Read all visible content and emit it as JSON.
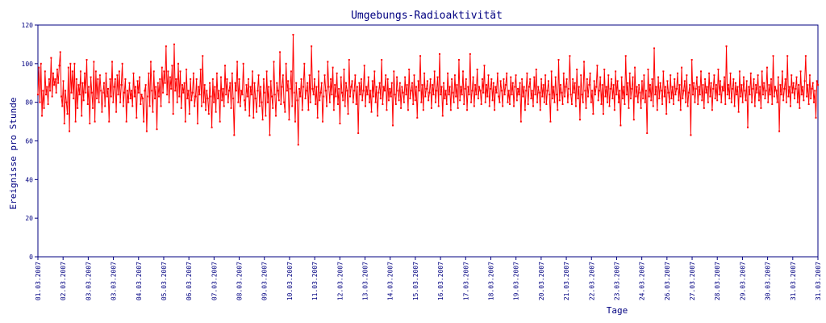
{
  "chart_data": {
    "type": "line",
    "title": "Umgebungs-Radioaktivität",
    "xlabel": "Tage",
    "ylabel": "Ereignisse pro Stunde",
    "ylim": [
      0,
      120
    ],
    "yticks": [
      "0",
      "20",
      "40",
      "60",
      "80",
      "100",
      "120"
    ],
    "xticks": [
      "01.03.2007",
      "02.03.2007",
      "03.03.2007",
      "03.03.2007",
      "04.03.2007",
      "05.03.2007",
      "06.03.2007",
      "07.03.2007",
      "08.03.2007",
      "09.03.2007",
      "10.03.2007",
      "11.03.2007",
      "12.03.2007",
      "13.03.2007",
      "14.03.2007",
      "15.03.2007",
      "16.03.2007",
      "17.03.2007",
      "18.03.2007",
      "19.03.2007",
      "20.03.2007",
      "21.03.2007",
      "22.03.2007",
      "23.03.2007",
      "24.03.2007",
      "26.03.2007",
      "27.03.2007",
      "28.03.2007",
      "29.03.2007",
      "30.03.2007",
      "31.03.2007",
      "31.03.2007"
    ],
    "x_unit": "hours since first tick label",
    "points_per_day": 24,
    "grid": false,
    "legend": "none",
    "line_color": "#ff0000",
    "axis_color": "#000080",
    "series": [
      {
        "values": [
          84,
          98,
          80,
          100,
          73,
          86,
          77,
          96,
          84,
          88,
          79,
          92,
          86,
          103,
          83,
          95,
          89,
          92,
          85,
          97,
          90,
          99,
          106,
          83,
          78,
          91,
          69,
          86,
          80,
          74,
          98,
          65,
          100,
          85,
          96,
          82,
          100,
          70,
          92,
          77,
          89,
          84,
          96,
          73,
          90,
          81,
          95,
          85,
          102,
          79,
          88,
          69,
          93,
          85,
          77,
          101,
          70,
          96,
          82,
          92,
          80,
          94,
          86,
          75,
          85,
          90,
          78,
          95,
          83,
          87,
          70,
          92,
          83,
          101,
          80,
          88,
          92,
          75,
          94,
          84,
          96,
          80,
          89,
          100,
          78,
          85,
          92,
          70,
          86,
          80,
          90,
          82,
          86,
          78,
          95,
          83,
          88,
          72,
          91,
          85,
          93,
          79,
          84,
          82,
          70,
          86,
          89,
          65,
          83,
          95,
          78,
          101,
          86,
          75,
          96,
          82,
          88,
          66,
          90,
          83,
          92,
          78,
          98,
          85,
          96,
          90,
          109,
          84,
          96,
          80,
          93,
          87,
          99,
          74,
          110,
          86,
          92,
          80,
          100,
          83,
          96,
          77,
          89,
          85,
          90,
          70,
          97,
          82,
          86,
          74,
          92,
          81,
          85,
          95,
          78,
          83,
          92,
          69,
          88,
          84,
          97,
          78,
          104,
          80,
          89,
          76,
          86,
          82,
          74,
          90,
          83,
          67,
          92,
          80,
          88,
          75,
          95,
          82,
          86,
          70,
          93,
          81,
          87,
          78,
          99,
          84,
          92,
          80,
          86,
          90,
          77,
          95,
          82,
          63,
          90,
          86,
          101,
          80,
          92,
          78,
          86,
          84,
          100,
          81,
          76,
          89,
          83,
          92,
          73,
          88,
          84,
          96,
          72,
          90,
          82,
          75,
          86,
          94,
          78,
          88,
          80,
          71,
          92,
          85,
          73,
          96,
          80,
          88,
          63,
          91,
          83,
          77,
          101,
          84,
          73,
          90,
          86,
          81,
          106,
          79,
          88,
          94,
          80,
          75,
          100,
          86,
          91,
          71,
          87,
          96,
          78,
          115,
          85,
          70,
          90,
          81,
          58,
          87,
          83,
          92,
          76,
          88,
          100,
          82,
          86,
          90,
          76,
          94,
          80,
          109,
          87,
          84,
          92,
          79,
          88,
          72,
          96,
          81,
          85,
          90,
          70,
          83,
          94,
          86,
          78,
          101,
          88,
          80,
          92,
          84,
          98,
          76,
          89,
          83,
          95,
          79,
          87,
          69,
          93,
          85,
          81,
          97,
          78,
          90,
          86,
          74,
          102,
          83,
          88,
          91,
          80,
          86,
          94,
          79,
          88,
          64,
          90,
          84,
          92,
          81,
          86,
          99,
          78,
          88,
          84,
          93,
          80,
          86,
          75,
          91,
          83,
          96,
          80,
          88,
          73,
          85,
          90,
          82,
          102,
          79,
          88,
          86,
          94,
          76,
          92,
          81,
          87,
          83,
          90,
          68,
          96,
          84,
          79,
          93,
          86,
          81,
          90,
          77,
          88,
          85,
          80,
          93,
          84,
          89,
          76,
          97,
          82,
          86,
          90,
          79,
          94,
          81,
          88,
          72,
          91,
          86,
          104,
          80,
          89,
          76,
          95,
          83,
          87,
          91,
          81,
          85,
          92,
          77,
          89,
          84,
          96,
          80,
          86,
          93,
          78,
          105,
          84,
          88,
          73,
          90,
          82,
          86,
          79,
          95,
          84,
          88,
          76,
          92,
          85,
          80,
          94,
          83,
          89,
          77,
          102,
          81,
          88,
          84,
          96,
          79,
          87,
          92,
          76,
          88,
          84,
          105,
          80,
          86,
          93,
          78,
          89,
          84,
          97,
          82,
          88,
          86,
          79,
          92,
          85,
          99,
          80,
          89,
          83,
          94,
          78,
          87,
          92,
          81,
          90,
          76,
          88,
          85,
          95,
          83,
          80,
          91,
          86,
          78,
          92,
          84,
          89,
          95,
          80,
          86,
          79,
          93,
          84,
          90,
          78,
          88,
          94,
          81,
          87,
          84,
          90,
          70,
          92,
          83,
          88,
          76,
          86,
          95,
          79,
          88,
          92,
          82,
          86,
          78,
          93,
          84,
          97,
          80,
          88,
          85,
          76,
          92,
          83,
          89,
          80,
          94,
          79,
          86,
          91,
          84,
          70,
          96,
          82,
          88,
          80,
          93,
          84,
          76,
          102,
          81,
          89,
          85,
          79,
          95,
          83,
          88,
          92,
          80,
          87,
          104,
          84,
          79,
          92,
          85,
          90,
          78,
          97,
          82,
          88,
          71,
          94,
          84,
          80,
          101,
          86,
          77,
          92,
          83,
          89,
          95,
          80,
          86,
          74,
          91,
          84,
          88,
          99,
          81,
          86,
          93,
          79,
          89,
          74,
          97,
          83,
          88,
          80,
          94,
          78,
          87,
          92,
          82,
          89,
          76,
          96,
          84,
          91,
          80,
          86,
          68,
          93,
          82,
          88,
          79,
          104,
          84,
          90,
          77,
          95,
          82,
          87,
          93,
          71,
          98,
          83,
          88,
          80,
          89,
          85,
          77,
          91,
          82,
          94,
          80,
          86,
          64,
          97,
          83,
          89,
          81,
          92,
          78,
          108,
          84,
          88,
          76,
          93,
          82,
          90,
          86,
          79,
          96,
          83,
          88,
          74,
          91,
          85,
          80,
          94,
          82,
          88,
          79,
          92,
          84,
          87,
          95,
          81,
          89,
          76,
          98,
          82,
          86,
          91,
          80,
          94,
          78,
          85,
          89,
          63,
          102,
          84,
          90,
          80,
          87,
          93,
          79,
          88,
          84,
          96,
          81,
          89,
          77,
          92,
          85,
          88,
          80,
          95,
          83,
          90,
          76,
          87,
          94,
          82,
          89,
          81,
          97,
          84,
          91,
          80,
          88,
          86,
          93,
          79,
          109,
          84,
          89,
          82,
          95,
          80,
          87,
          92,
          78,
          90,
          84,
          88,
          75,
          96,
          83,
          89,
          80,
          93,
          86,
          81,
          91,
          67,
          88,
          84,
          95,
          80,
          87,
          92,
          78,
          89,
          85,
          94,
          81,
          88,
          77,
          96,
          84,
          90,
          82,
          86,
          98,
          80,
          89,
          84,
          92,
          79,
          104,
          83,
          88,
          86,
          80,
          93,
          65,
          89,
          84,
          96,
          81,
          87,
          92,
          80,
          104,
          83,
          88,
          78,
          94,
          85,
          90,
          82,
          87,
          93,
          80,
          89,
          77,
          96,
          84,
          88,
          81,
          91,
          104,
          83,
          89,
          79,
          94,
          82,
          87,
          90,
          80,
          86,
          72,
          91,
          89
        ]
      }
    ]
  }
}
